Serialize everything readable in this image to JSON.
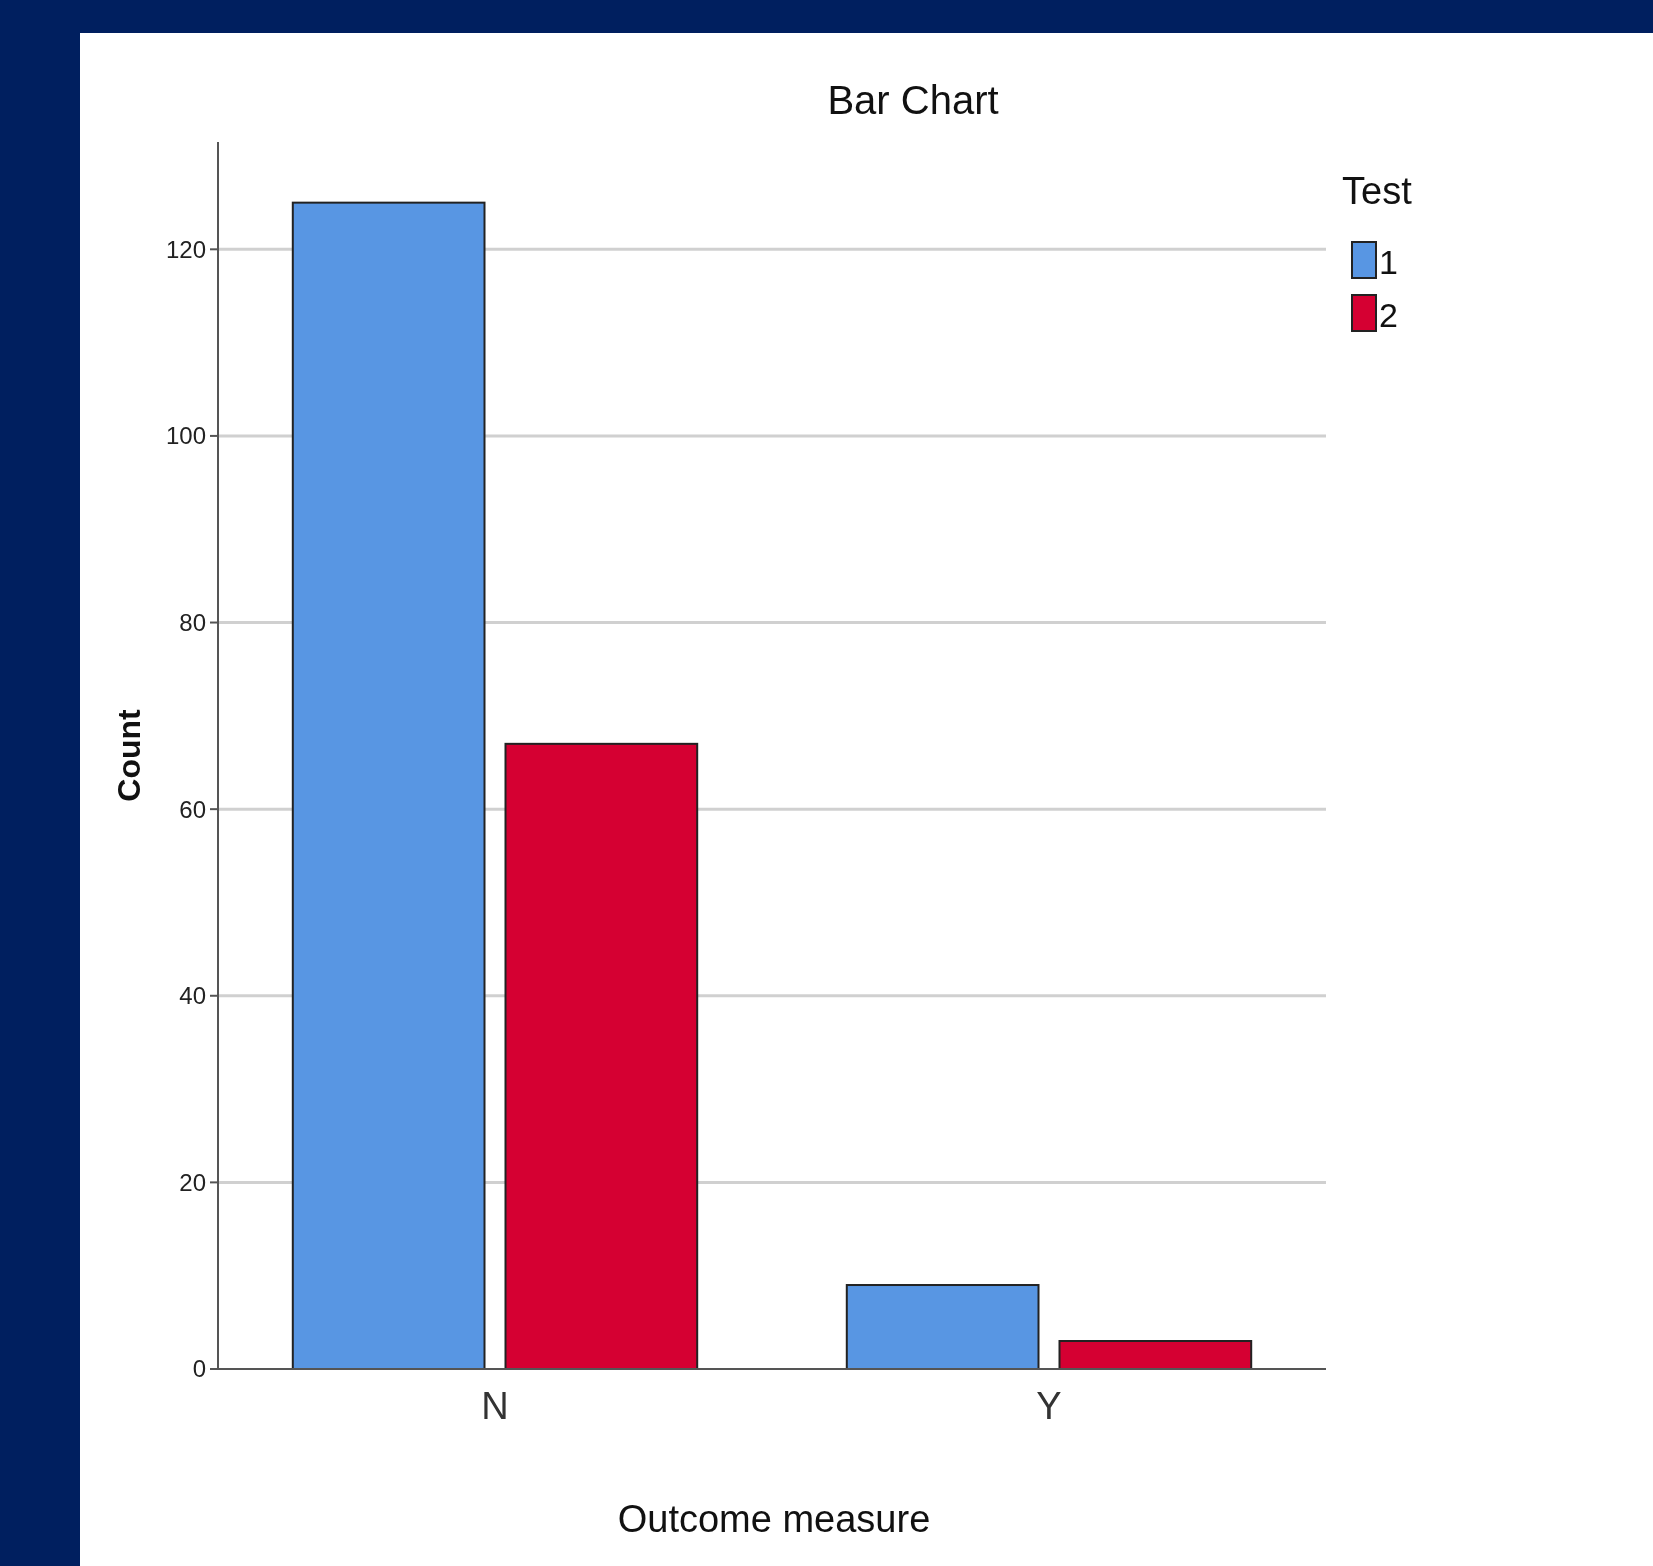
{
  "chart_data": {
    "type": "bar",
    "title": "Bar Chart",
    "xlabel": "Outcome measure",
    "ylabel": "Count",
    "legend_title": "Test",
    "categories": [
      "N",
      "Y"
    ],
    "series": [
      {
        "name": "1",
        "color": "#5896e3",
        "values": [
          125,
          9
        ]
      },
      {
        "name": "2",
        "color": "#d50032",
        "values": [
          67,
          3
        ]
      }
    ],
    "ylim": [
      0,
      131.5
    ],
    "yticks": [
      0,
      20,
      40,
      60,
      80,
      100,
      120
    ],
    "grid": "y",
    "legend": "top right"
  }
}
